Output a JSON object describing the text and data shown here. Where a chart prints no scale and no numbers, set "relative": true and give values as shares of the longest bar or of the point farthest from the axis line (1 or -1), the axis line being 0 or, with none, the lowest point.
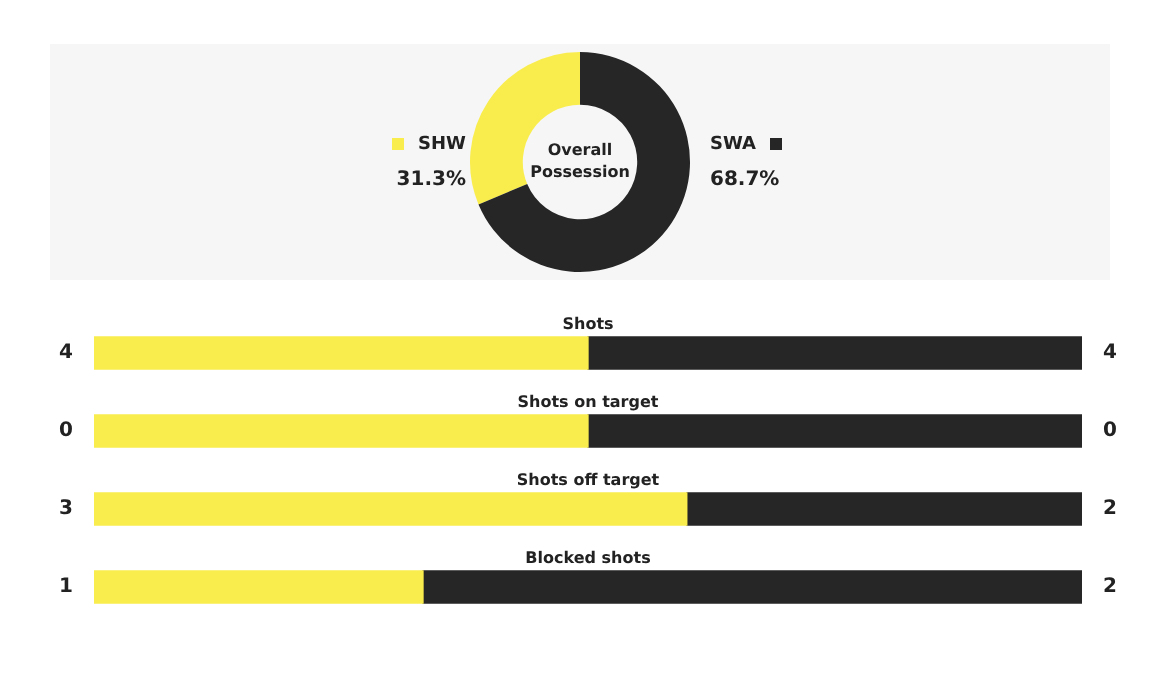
{
  "chart_data": [
    {
      "type": "donut",
      "title": "Overall Possession",
      "categories": [
        "SHW",
        "SWA"
      ],
      "values": [
        31.3,
        68.7
      ],
      "colors": [
        "#f9ed4e",
        "#262626"
      ],
      "value_labels": [
        "31.3%",
        "68.7%"
      ]
    },
    {
      "type": "bar",
      "orientation": "horizontal",
      "stacked": true,
      "relative": true,
      "categories": [
        "Shots",
        "Shots on target",
        "Shots off target",
        "Blocked shots"
      ],
      "annotations": [
        "4",
        "4",
        "0",
        "0",
        "3",
        "2",
        "1",
        "2"
      ],
      "series": [
        {
          "color": "#f9ed4e",
          "values": [
            0.5,
            0.5,
            0.6,
            0.333
          ]
        },
        {
          "color": "#262626",
          "values": [
            0.5,
            0.5,
            0.4,
            0.667
          ]
        }
      ]
    }
  ]
}
